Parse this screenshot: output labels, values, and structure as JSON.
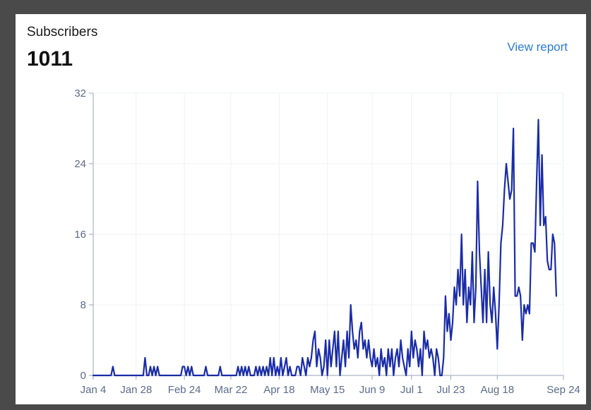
{
  "header": {
    "metric_label": "Subscribers",
    "metric_value": "1011",
    "view_report_label": "View report"
  },
  "colors": {
    "line": "#1a2ca8",
    "grid": "#eef0f5",
    "axis": "#9aa4b8",
    "link": "#2b7bd6"
  },
  "chart_data": {
    "type": "line",
    "title": "",
    "xlabel": "",
    "ylabel": "",
    "ylim": [
      0,
      32
    ],
    "y_ticks": [
      0,
      8,
      16,
      24,
      32
    ],
    "x_start": "Jan 4",
    "x_end": "Sep 24",
    "x_ticks": [
      {
        "label": "Jan 4",
        "day": 0
      },
      {
        "label": "Jan 28",
        "day": 24
      },
      {
        "label": "Feb 24",
        "day": 51
      },
      {
        "label": "Mar 22",
        "day": 77
      },
      {
        "label": "Apr 18",
        "day": 104
      },
      {
        "label": "May 15",
        "day": 131
      },
      {
        "label": "Jun 9",
        "day": 156
      },
      {
        "label": "Jul 1",
        "day": 178
      },
      {
        "label": "Jul 23",
        "day": 200
      },
      {
        "label": "Aug 18",
        "day": 226
      },
      {
        "label": "Sep 24",
        "day": 263
      }
    ],
    "grid": true,
    "series": [
      {
        "name": "",
        "points": [
          [
            0,
            0
          ],
          [
            10,
            0
          ],
          [
            11,
            1
          ],
          [
            12,
            0
          ],
          [
            28,
            0
          ],
          [
            29,
            2
          ],
          [
            30,
            0
          ],
          [
            31,
            0
          ],
          [
            32,
            1
          ],
          [
            33,
            0
          ],
          [
            34,
            1
          ],
          [
            35,
            0
          ],
          [
            36,
            1
          ],
          [
            37,
            0
          ],
          [
            49,
            0
          ],
          [
            50,
            1
          ],
          [
            51,
            1
          ],
          [
            52,
            0
          ],
          [
            53,
            1
          ],
          [
            54,
            0
          ],
          [
            55,
            1
          ],
          [
            56,
            0
          ],
          [
            62,
            0
          ],
          [
            63,
            1
          ],
          [
            64,
            0
          ],
          [
            70,
            0
          ],
          [
            71,
            1
          ],
          [
            72,
            0
          ],
          [
            80,
            0
          ],
          [
            81,
            1
          ],
          [
            82,
            0
          ],
          [
            83,
            1
          ],
          [
            84,
            0
          ],
          [
            85,
            1
          ],
          [
            86,
            0
          ],
          [
            87,
            1
          ],
          [
            88,
            0
          ],
          [
            90,
            0
          ],
          [
            91,
            1
          ],
          [
            92,
            0
          ],
          [
            93,
            1
          ],
          [
            94,
            0
          ],
          [
            95,
            1
          ],
          [
            96,
            0
          ],
          [
            97,
            1
          ],
          [
            98,
            0
          ],
          [
            99,
            2
          ],
          [
            100,
            0
          ],
          [
            101,
            2
          ],
          [
            102,
            0
          ],
          [
            103,
            1
          ],
          [
            104,
            0
          ],
          [
            105,
            2
          ],
          [
            106,
            0
          ],
          [
            107,
            1
          ],
          [
            108,
            2
          ],
          [
            109,
            0
          ],
          [
            110,
            1
          ],
          [
            111,
            0
          ],
          [
            113,
            0
          ],
          [
            114,
            1
          ],
          [
            115,
            1
          ],
          [
            116,
            0
          ],
          [
            117,
            2
          ],
          [
            118,
            1
          ],
          [
            119,
            0
          ],
          [
            120,
            2
          ],
          [
            121,
            1
          ],
          [
            122,
            2
          ],
          [
            123,
            4
          ],
          [
            124,
            5
          ],
          [
            125,
            1
          ],
          [
            126,
            3
          ],
          [
            127,
            2
          ],
          [
            128,
            0
          ],
          [
            129,
            1
          ],
          [
            130,
            4
          ],
          [
            131,
            0
          ],
          [
            132,
            4
          ],
          [
            133,
            1
          ],
          [
            134,
            3
          ],
          [
            135,
            5
          ],
          [
            136,
            1
          ],
          [
            137,
            5
          ],
          [
            138,
            0
          ],
          [
            139,
            2
          ],
          [
            140,
            4
          ],
          [
            141,
            1
          ],
          [
            142,
            5
          ],
          [
            143,
            2
          ],
          [
            144,
            8
          ],
          [
            145,
            5
          ],
          [
            146,
            3
          ],
          [
            147,
            4
          ],
          [
            148,
            2
          ],
          [
            149,
            5
          ],
          [
            150,
            6
          ],
          [
            151,
            3
          ],
          [
            152,
            4
          ],
          [
            153,
            2
          ],
          [
            154,
            4
          ],
          [
            155,
            2
          ],
          [
            156,
            1
          ],
          [
            157,
            3
          ],
          [
            158,
            1
          ],
          [
            159,
            2
          ],
          [
            160,
            0
          ],
          [
            161,
            3
          ],
          [
            162,
            1
          ],
          [
            163,
            2
          ],
          [
            164,
            0
          ],
          [
            165,
            3
          ],
          [
            166,
            1
          ],
          [
            167,
            3
          ],
          [
            168,
            0
          ],
          [
            169,
            2
          ],
          [
            170,
            3
          ],
          [
            171,
            1
          ],
          [
            172,
            4
          ],
          [
            173,
            2
          ],
          [
            174,
            1
          ],
          [
            175,
            0
          ],
          [
            176,
            3
          ],
          [
            177,
            1
          ],
          [
            178,
            5
          ],
          [
            179,
            2
          ],
          [
            180,
            4
          ],
          [
            181,
            3
          ],
          [
            182,
            1
          ],
          [
            183,
            3
          ],
          [
            184,
            0
          ],
          [
            185,
            5
          ],
          [
            186,
            3
          ],
          [
            187,
            4
          ],
          [
            188,
            2
          ],
          [
            189,
            3
          ],
          [
            190,
            2
          ],
          [
            191,
            0
          ],
          [
            192,
            3
          ],
          [
            193,
            2
          ],
          [
            194,
            0
          ],
          [
            195,
            0
          ],
          [
            196,
            2
          ],
          [
            197,
            9
          ],
          [
            198,
            5
          ],
          [
            199,
            7
          ],
          [
            200,
            4
          ],
          [
            201,
            6
          ],
          [
            202,
            10
          ],
          [
            203,
            8
          ],
          [
            204,
            12
          ],
          [
            205,
            9
          ],
          [
            206,
            16
          ],
          [
            207,
            8
          ],
          [
            208,
            12
          ],
          [
            209,
            6
          ],
          [
            210,
            10
          ],
          [
            211,
            8
          ],
          [
            212,
            14
          ],
          [
            213,
            6
          ],
          [
            214,
            10
          ],
          [
            215,
            22
          ],
          [
            216,
            14
          ],
          [
            217,
            10
          ],
          [
            218,
            6
          ],
          [
            219,
            12
          ],
          [
            220,
            6
          ],
          [
            221,
            14
          ],
          [
            222,
            8
          ],
          [
            223,
            6
          ],
          [
            224,
            10
          ],
          [
            225,
            7
          ],
          [
            226,
            3
          ],
          [
            227,
            8
          ],
          [
            228,
            15
          ],
          [
            229,
            17
          ],
          [
            230,
            21
          ],
          [
            231,
            24
          ],
          [
            232,
            22
          ],
          [
            233,
            20
          ],
          [
            234,
            21
          ],
          [
            235,
            28
          ],
          [
            236,
            9
          ],
          [
            237,
            9
          ],
          [
            238,
            10
          ],
          [
            239,
            9
          ],
          [
            240,
            4
          ],
          [
            241,
            8
          ],
          [
            242,
            7
          ],
          [
            243,
            8
          ],
          [
            244,
            7
          ],
          [
            245,
            15
          ],
          [
            246,
            15
          ],
          [
            247,
            14
          ],
          [
            248,
            22
          ],
          [
            249,
            29
          ],
          [
            250,
            17
          ],
          [
            251,
            25
          ],
          [
            252,
            17
          ],
          [
            253,
            18
          ],
          [
            254,
            13
          ],
          [
            255,
            12
          ],
          [
            256,
            12
          ],
          [
            257,
            16
          ],
          [
            258,
            15
          ],
          [
            259,
            9
          ]
        ]
      }
    ]
  }
}
